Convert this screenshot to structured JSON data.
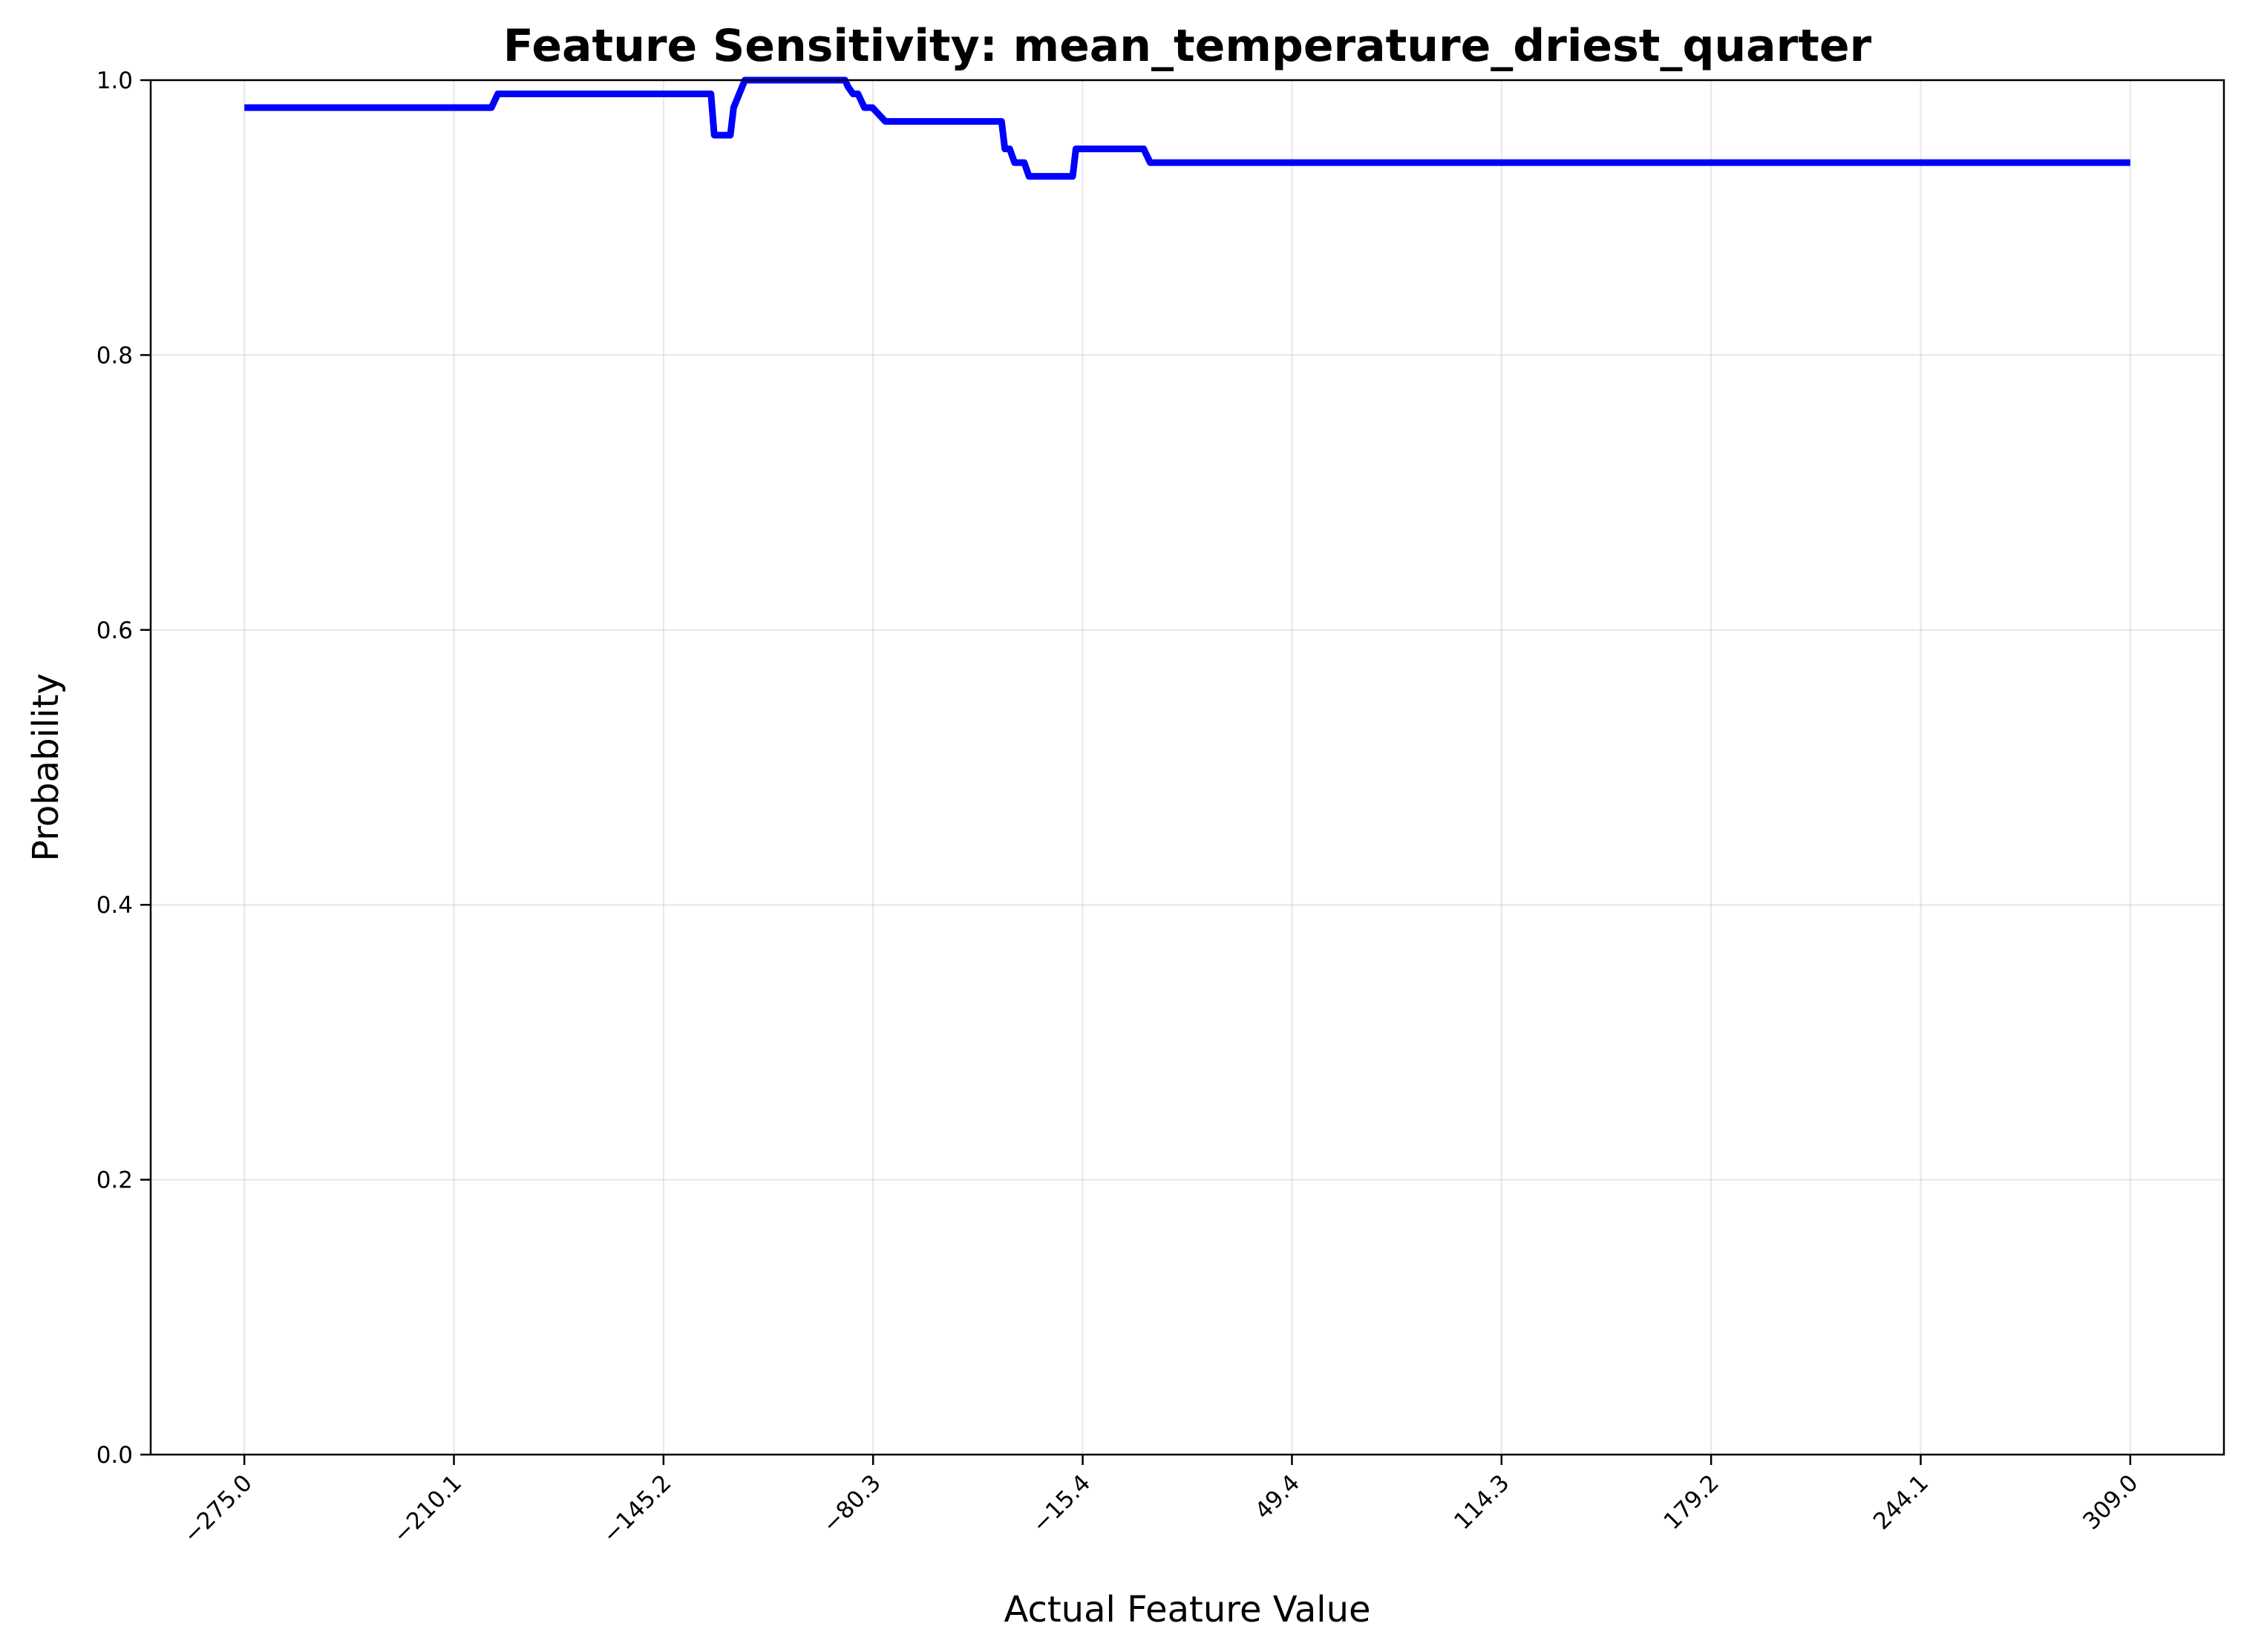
{
  "chart_data": {
    "type": "line",
    "title": "Feature Sensitivity: mean_temperature_driest_quarter",
    "xlabel": "Actual Feature Value",
    "ylabel": "Probability",
    "xlim": [
      -304,
      338
    ],
    "ylim": [
      0.0,
      1.0
    ],
    "grid": true,
    "legend": "none",
    "x_ticks": [
      -275.0,
      -210.1,
      -145.2,
      -80.3,
      -15.4,
      49.4,
      114.3,
      179.2,
      244.1,
      309.0
    ],
    "x_tick_labels": [
      "−275.0",
      "−210.1",
      "−145.2",
      "−80.3",
      "−15.4",
      "49.4",
      "114.3",
      "179.2",
      "244.1",
      "309.0"
    ],
    "y_ticks": [
      0.0,
      0.2,
      0.4,
      0.6,
      0.8,
      1.0
    ],
    "y_tick_labels": [
      "0.0",
      "0.2",
      "0.4",
      "0.6",
      "0.8",
      "1.0"
    ],
    "series": [
      {
        "color": "#0000ff",
        "x": [
          -275.0,
          -198.5,
          -197.5,
          -196.5,
          -130.5,
          -129.5,
          -124.5,
          -123.5,
          -120.0,
          -89.0,
          -88.0,
          -86.5,
          -85.0,
          -83.0,
          -80.5,
          -78.5,
          -76.5,
          -40.5,
          -39.5,
          -38.0,
          -36.5,
          -33.5,
          -32.0,
          -18.5,
          -17.5,
          -8.5,
          3.5,
          4.5,
          5.5,
          309.0
        ],
        "y": [
          0.98,
          0.98,
          0.985,
          0.99,
          0.99,
          0.96,
          0.96,
          0.98,
          1.0,
          1.0,
          0.995,
          0.99,
          0.99,
          0.98,
          0.98,
          0.975,
          0.97,
          0.97,
          0.95,
          0.95,
          0.94,
          0.94,
          0.93,
          0.93,
          0.95,
          0.95,
          0.95,
          0.945,
          0.94,
          0.94
        ]
      }
    ]
  }
}
